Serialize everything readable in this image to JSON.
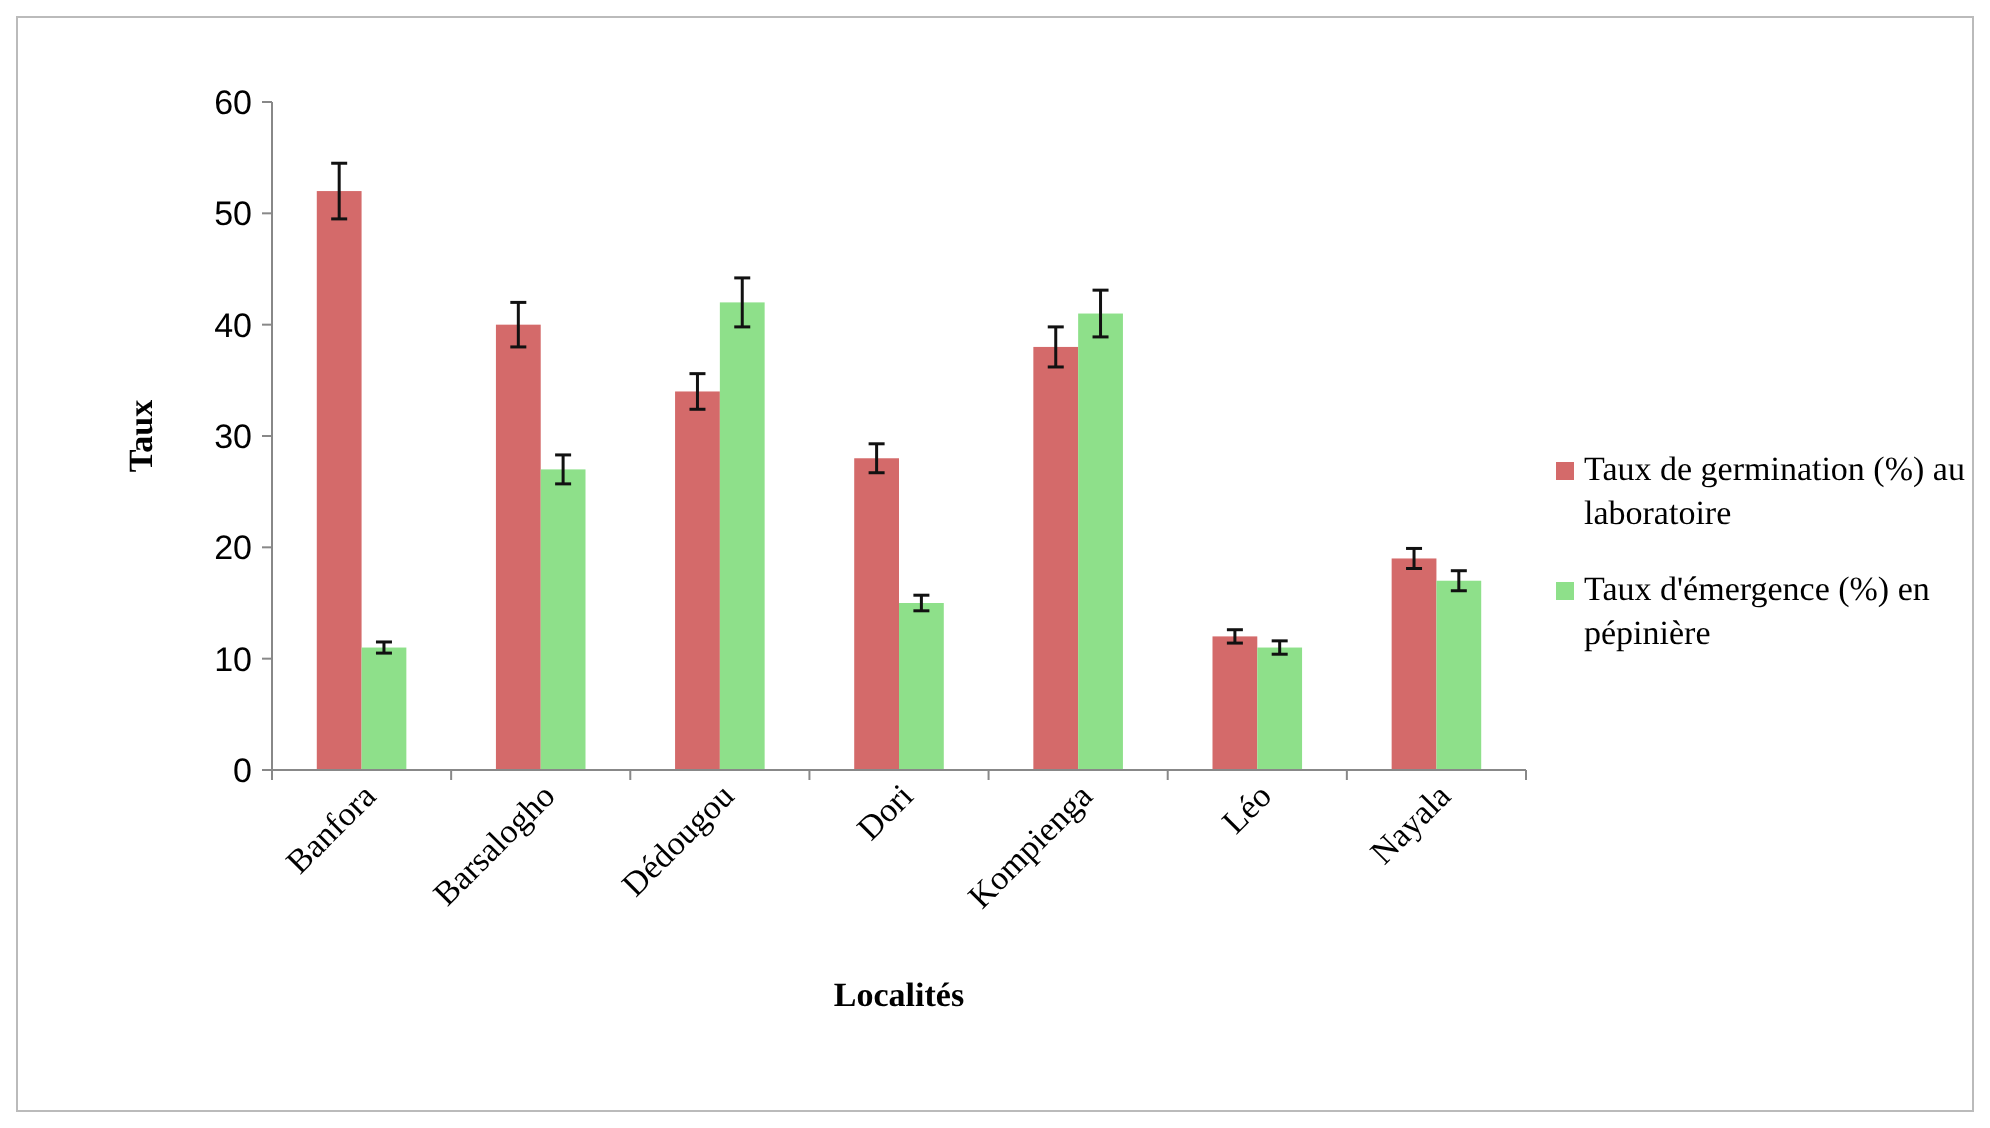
{
  "chart_data": {
    "type": "bar",
    "xlabel": "Localités",
    "ylabel": "Taux",
    "categories": [
      "Banfora",
      "Barsalogho",
      "Dédougou",
      "Dori",
      "Kompienga",
      "Léo",
      "Nayala"
    ],
    "series": [
      {
        "name": "Taux de germination (%) au laboratoire",
        "color": "#d46a6a",
        "values": [
          52,
          40,
          34,
          28,
          38,
          12,
          19
        ],
        "errors": [
          2.5,
          2,
          1.6,
          1.3,
          1.8,
          0.6,
          0.9
        ]
      },
      {
        "name": "Taux d'émergence (%) en pépinière",
        "color": "#8ee08a",
        "values": [
          11,
          27,
          42,
          15,
          41,
          11,
          17
        ],
        "errors": [
          0.5,
          1.3,
          2.2,
          0.7,
          2.1,
          0.6,
          0.9
        ]
      }
    ],
    "ylim": [
      0,
      60
    ],
    "yticks": [
      0,
      10,
      20,
      30,
      40,
      50,
      60
    ],
    "grid": false,
    "legend": "right"
  }
}
